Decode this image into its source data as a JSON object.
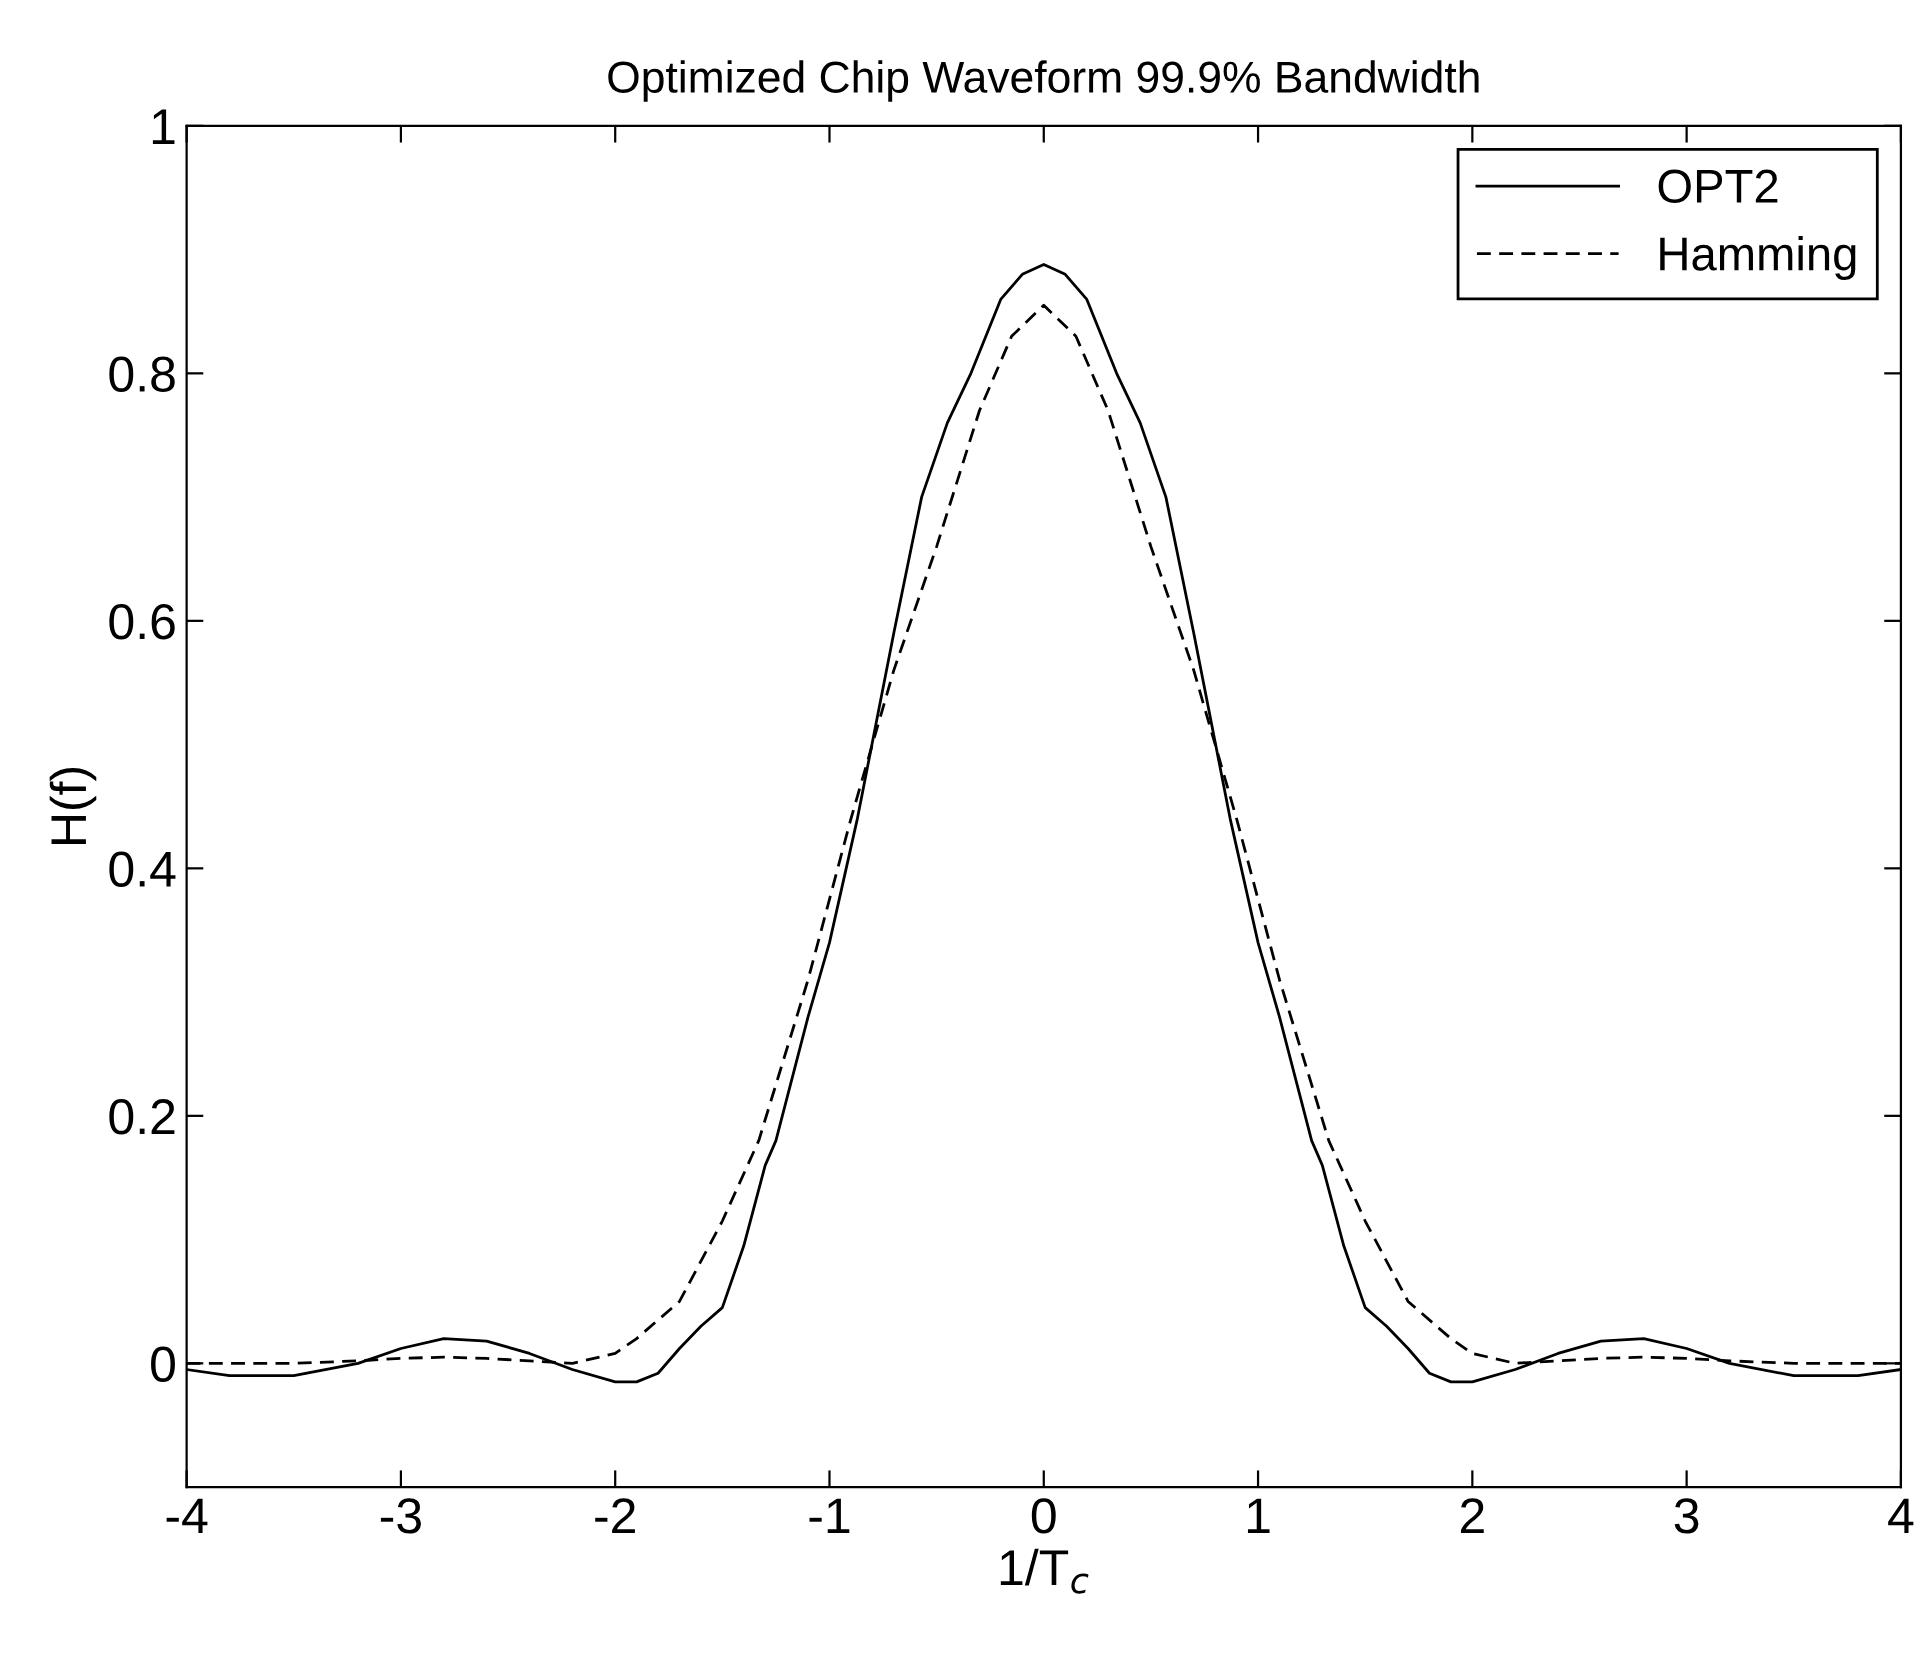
{
  "chart_data": {
    "type": "line",
    "title": "Optimized Chip Waveform 99.9% Bandwidth",
    "xlabel": "1/T$_{c}$",
    "ylabel": "H(f)",
    "xlim": [
      -4,
      4
    ],
    "ylim": [
      -0.1,
      1
    ],
    "xticks": [
      -4,
      -3,
      -2,
      -1,
      0,
      1,
      2,
      3,
      4
    ],
    "yticks": [
      0,
      0.2,
      0.4,
      0.6,
      0.8,
      1
    ],
    "grid": false,
    "legend": "top right",
    "series": [
      {
        "name": "OPT2",
        "color": "#000000",
        "line_style": "solid",
        "x": [
          -4,
          -3.8,
          -3.5,
          -3.2,
          -3.0,
          -2.8,
          -2.6,
          -2.4,
          -2.2,
          -2.0,
          -1.9,
          -1.8,
          -1.7,
          -1.6,
          -1.5,
          -1.4,
          -1.3,
          -1.25,
          -1.1,
          -1.0,
          -0.87,
          -0.7,
          -0.57,
          -0.45,
          -0.34,
          -0.2,
          -0.1,
          0,
          0.1,
          0.2,
          0.34,
          0.45,
          0.57,
          0.7,
          0.87,
          1.0,
          1.1,
          1.25,
          1.3,
          1.4,
          1.5,
          1.6,
          1.7,
          1.8,
          1.9,
          2.0,
          2.2,
          2.4,
          2.6,
          2.8,
          3.0,
          3.2,
          3.5,
          3.8,
          4
        ],
        "values": [
          -0.005,
          -0.01,
          -0.01,
          0.0,
          0.012,
          0.02,
          0.018,
          0.008,
          -0.005,
          -0.015,
          -0.015,
          -0.008,
          0.012,
          0.03,
          0.045,
          0.095,
          0.16,
          0.18,
          0.28,
          0.34,
          0.44,
          0.59,
          0.7,
          0.76,
          0.8,
          0.86,
          0.88,
          0.888,
          0.88,
          0.86,
          0.8,
          0.76,
          0.7,
          0.59,
          0.44,
          0.34,
          0.28,
          0.18,
          0.16,
          0.095,
          0.045,
          0.03,
          0.012,
          -0.008,
          -0.015,
          -0.015,
          -0.005,
          0.008,
          0.018,
          0.02,
          0.012,
          0.0,
          -0.01,
          -0.01,
          -0.005
        ]
      },
      {
        "name": "Hamming",
        "color": "#000000",
        "line_style": "dashed",
        "x": [
          -4,
          -3.5,
          -3.2,
          -3.0,
          -2.8,
          -2.6,
          -2.4,
          -2.2,
          -2.0,
          -1.9,
          -1.7,
          -1.5,
          -1.33,
          -1.1,
          -0.9,
          -0.7,
          -0.5,
          -0.3,
          -0.15,
          0,
          0.15,
          0.3,
          0.5,
          0.7,
          0.9,
          1.1,
          1.33,
          1.5,
          1.7,
          1.9,
          2.0,
          2.2,
          2.4,
          2.6,
          2.8,
          3.0,
          3.2,
          3.5,
          4
        ],
        "values": [
          0.0,
          0.0,
          0.002,
          0.004,
          0.005,
          0.004,
          0.002,
          0.0,
          0.008,
          0.02,
          0.05,
          0.115,
          0.18,
          0.31,
          0.44,
          0.56,
          0.66,
          0.77,
          0.83,
          0.855,
          0.83,
          0.77,
          0.66,
          0.56,
          0.44,
          0.31,
          0.18,
          0.115,
          0.05,
          0.02,
          0.008,
          0.0,
          0.002,
          0.004,
          0.005,
          0.004,
          0.002,
          0.0,
          0.0
        ]
      }
    ]
  }
}
